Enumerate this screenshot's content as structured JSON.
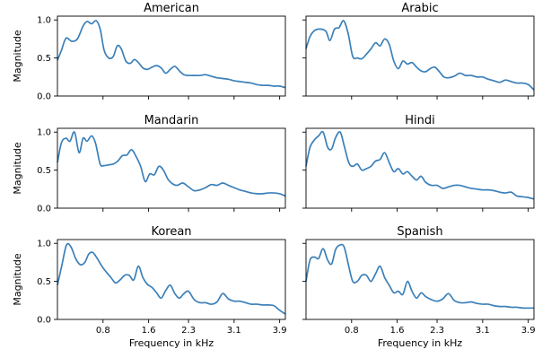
{
  "chart_data": [
    {
      "type": "line",
      "title": "American",
      "ylabel": "Magnitude",
      "xlabel": "",
      "xlim": [
        0,
        4.0
      ],
      "ylim": [
        0,
        1.05
      ],
      "xticks": [
        0.8,
        1.6,
        2.3,
        3.1,
        3.9
      ],
      "xticklabels": [
        "0.8",
        "1.6",
        "2.3",
        "3.1",
        "3.9"
      ],
      "yticks": [
        0,
        0.5,
        1.0
      ],
      "yticklabels": [
        "0.0",
        "0.5",
        "1.0"
      ],
      "x": [
        0.0,
        0.07,
        0.15,
        0.25,
        0.35,
        0.45,
        0.52,
        0.6,
        0.68,
        0.75,
        0.82,
        0.9,
        0.98,
        1.05,
        1.12,
        1.2,
        1.28,
        1.35,
        1.42,
        1.5,
        1.58,
        1.66,
        1.74,
        1.82,
        1.9,
        1.98,
        2.06,
        2.14,
        2.22,
        2.3,
        2.4,
        2.5,
        2.6,
        2.7,
        2.8,
        2.9,
        3.0,
        3.1,
        3.2,
        3.3,
        3.4,
        3.5,
        3.6,
        3.7,
        3.8,
        3.9,
        4.0
      ],
      "y": [
        0.47,
        0.6,
        0.76,
        0.72,
        0.75,
        0.92,
        0.98,
        0.95,
        0.99,
        0.88,
        0.6,
        0.5,
        0.52,
        0.66,
        0.62,
        0.46,
        0.43,
        0.48,
        0.44,
        0.37,
        0.35,
        0.38,
        0.4,
        0.37,
        0.3,
        0.35,
        0.39,
        0.33,
        0.28,
        0.27,
        0.27,
        0.27,
        0.28,
        0.26,
        0.24,
        0.23,
        0.22,
        0.2,
        0.19,
        0.18,
        0.17,
        0.15,
        0.14,
        0.14,
        0.13,
        0.13,
        0.11
      ]
    },
    {
      "type": "line",
      "title": "Arabic",
      "ylabel": "",
      "xlabel": "",
      "xlim": [
        0,
        4.0
      ],
      "ylim": [
        0,
        1.05
      ],
      "xticks": [
        0.8,
        1.6,
        2.3,
        3.1,
        3.9
      ],
      "xticklabels": [
        "0.8",
        "1.6",
        "2.3",
        "3.1",
        "3.9"
      ],
      "yticks": [
        0,
        0.5,
        1.0
      ],
      "yticklabels": [
        "0.0",
        "0.5",
        "1.0"
      ],
      "x": [
        0.0,
        0.07,
        0.15,
        0.25,
        0.35,
        0.42,
        0.5,
        0.58,
        0.66,
        0.74,
        0.82,
        0.9,
        0.98,
        1.06,
        1.14,
        1.22,
        1.3,
        1.38,
        1.46,
        1.54,
        1.62,
        1.7,
        1.78,
        1.86,
        1.94,
        2.02,
        2.1,
        2.18,
        2.26,
        2.34,
        2.42,
        2.5,
        2.6,
        2.7,
        2.8,
        2.9,
        3.0,
        3.1,
        3.2,
        3.3,
        3.4,
        3.5,
        3.6,
        3.7,
        3.8,
        3.9,
        4.0
      ],
      "y": [
        0.62,
        0.78,
        0.86,
        0.88,
        0.85,
        0.73,
        0.88,
        0.9,
        0.99,
        0.82,
        0.52,
        0.5,
        0.49,
        0.55,
        0.62,
        0.7,
        0.66,
        0.75,
        0.68,
        0.46,
        0.36,
        0.46,
        0.42,
        0.44,
        0.38,
        0.33,
        0.32,
        0.36,
        0.38,
        0.32,
        0.25,
        0.24,
        0.26,
        0.3,
        0.27,
        0.27,
        0.25,
        0.25,
        0.22,
        0.2,
        0.18,
        0.21,
        0.19,
        0.17,
        0.17,
        0.15,
        0.08
      ]
    },
    {
      "type": "line",
      "title": "Mandarin",
      "ylabel": "Magnitude",
      "xlabel": "",
      "xlim": [
        0,
        4.0
      ],
      "ylim": [
        0,
        1.05
      ],
      "xticks": [
        0.8,
        1.6,
        2.3,
        3.1,
        3.9
      ],
      "xticklabels": [
        "0.8",
        "1.6",
        "2.3",
        "3.1",
        "3.9"
      ],
      "yticks": [
        0,
        0.5,
        1.0
      ],
      "yticklabels": [
        "0.0",
        "0.5",
        "1.0"
      ],
      "x": [
        0.0,
        0.07,
        0.15,
        0.22,
        0.3,
        0.38,
        0.45,
        0.52,
        0.6,
        0.67,
        0.75,
        0.82,
        0.9,
        0.98,
        1.06,
        1.14,
        1.22,
        1.3,
        1.38,
        1.46,
        1.54,
        1.62,
        1.7,
        1.78,
        1.86,
        1.94,
        2.02,
        2.1,
        2.2,
        2.3,
        2.4,
        2.5,
        2.6,
        2.7,
        2.8,
        2.9,
        3.0,
        3.1,
        3.2,
        3.3,
        3.4,
        3.5,
        3.6,
        3.7,
        3.8,
        3.9,
        4.0
      ],
      "y": [
        0.6,
        0.86,
        0.92,
        0.88,
        1.0,
        0.73,
        0.92,
        0.88,
        0.95,
        0.85,
        0.58,
        0.56,
        0.57,
        0.58,
        0.62,
        0.69,
        0.7,
        0.77,
        0.68,
        0.55,
        0.35,
        0.45,
        0.44,
        0.55,
        0.5,
        0.38,
        0.32,
        0.3,
        0.33,
        0.28,
        0.23,
        0.24,
        0.27,
        0.31,
        0.3,
        0.33,
        0.3,
        0.27,
        0.24,
        0.22,
        0.2,
        0.19,
        0.19,
        0.2,
        0.2,
        0.19,
        0.16
      ]
    },
    {
      "type": "line",
      "title": "Hindi",
      "ylabel": "",
      "xlabel": "",
      "xlim": [
        0,
        4.0
      ],
      "ylim": [
        0,
        1.05
      ],
      "xticks": [
        0.8,
        1.6,
        2.3,
        3.1,
        3.9
      ],
      "xticklabels": [
        "0.8",
        "1.6",
        "2.3",
        "3.1",
        "3.9"
      ],
      "yticks": [
        0,
        0.5,
        1.0
      ],
      "yticklabels": [
        "0.0",
        "0.5",
        "1.0"
      ],
      "x": [
        0.0,
        0.07,
        0.15,
        0.22,
        0.3,
        0.38,
        0.45,
        0.52,
        0.6,
        0.67,
        0.75,
        0.82,
        0.9,
        0.98,
        1.06,
        1.14,
        1.22,
        1.3,
        1.38,
        1.46,
        1.54,
        1.62,
        1.7,
        1.78,
        1.86,
        1.94,
        2.02,
        2.1,
        2.2,
        2.3,
        2.4,
        2.5,
        2.6,
        2.7,
        2.8,
        2.9,
        3.0,
        3.1,
        3.2,
        3.3,
        3.4,
        3.5,
        3.6,
        3.7,
        3.8,
        3.9,
        4.0
      ],
      "y": [
        0.55,
        0.8,
        0.9,
        0.95,
        1.0,
        0.8,
        0.78,
        0.93,
        1.0,
        0.82,
        0.6,
        0.55,
        0.58,
        0.5,
        0.52,
        0.55,
        0.62,
        0.64,
        0.73,
        0.6,
        0.48,
        0.52,
        0.45,
        0.48,
        0.42,
        0.37,
        0.42,
        0.34,
        0.3,
        0.3,
        0.26,
        0.28,
        0.3,
        0.3,
        0.28,
        0.26,
        0.25,
        0.24,
        0.24,
        0.23,
        0.21,
        0.2,
        0.21,
        0.16,
        0.15,
        0.14,
        0.12
      ]
    },
    {
      "type": "line",
      "title": "Korean",
      "ylabel": "Magnitude",
      "xlabel": "Frequency in kHz",
      "xlim": [
        0,
        4.0
      ],
      "ylim": [
        0,
        1.05
      ],
      "xticks": [
        0.8,
        1.6,
        2.3,
        3.1,
        3.9
      ],
      "xticklabels": [
        "0.8",
        "1.6",
        "2.3",
        "3.1",
        "3.9"
      ],
      "yticks": [
        0,
        0.5,
        1.0
      ],
      "yticklabels": [
        "0.0",
        "0.5",
        "1.0"
      ],
      "x": [
        0.0,
        0.08,
        0.16,
        0.24,
        0.32,
        0.4,
        0.48,
        0.55,
        0.62,
        0.7,
        0.78,
        0.86,
        0.94,
        1.02,
        1.1,
        1.18,
        1.26,
        1.34,
        1.42,
        1.5,
        1.58,
        1.66,
        1.74,
        1.82,
        1.9,
        1.98,
        2.06,
        2.14,
        2.22,
        2.3,
        2.4,
        2.5,
        2.6,
        2.7,
        2.8,
        2.9,
        3.0,
        3.1,
        3.2,
        3.3,
        3.4,
        3.5,
        3.6,
        3.7,
        3.8,
        3.9,
        4.0
      ],
      "y": [
        0.45,
        0.72,
        0.98,
        0.95,
        0.8,
        0.72,
        0.75,
        0.86,
        0.88,
        0.8,
        0.7,
        0.62,
        0.55,
        0.48,
        0.52,
        0.58,
        0.58,
        0.52,
        0.7,
        0.55,
        0.46,
        0.42,
        0.35,
        0.28,
        0.38,
        0.45,
        0.34,
        0.28,
        0.34,
        0.37,
        0.26,
        0.22,
        0.22,
        0.2,
        0.23,
        0.34,
        0.27,
        0.24,
        0.24,
        0.22,
        0.2,
        0.2,
        0.19,
        0.19,
        0.18,
        0.12,
        0.07
      ]
    },
    {
      "type": "line",
      "title": "Spanish",
      "ylabel": "",
      "xlabel": "Frequency in kHz",
      "xlim": [
        0,
        4.0
      ],
      "ylim": [
        0,
        1.05
      ],
      "xticks": [
        0.8,
        1.6,
        2.3,
        3.1,
        3.9
      ],
      "xticklabels": [
        "0.8",
        "1.6",
        "2.3",
        "3.1",
        "3.9"
      ],
      "yticks": [
        0,
        0.5,
        1.0
      ],
      "yticklabels": [
        "0.0",
        "0.5",
        "1.0"
      ],
      "x": [
        0.0,
        0.07,
        0.15,
        0.22,
        0.3,
        0.38,
        0.45,
        0.52,
        0.6,
        0.67,
        0.75,
        0.82,
        0.9,
        0.98,
        1.06,
        1.14,
        1.22,
        1.3,
        1.38,
        1.46,
        1.54,
        1.62,
        1.7,
        1.78,
        1.86,
        1.94,
        2.02,
        2.1,
        2.2,
        2.3,
        2.4,
        2.5,
        2.6,
        2.7,
        2.8,
        2.9,
        3.0,
        3.1,
        3.2,
        3.3,
        3.4,
        3.5,
        3.6,
        3.7,
        3.8,
        3.9,
        4.0
      ],
      "y": [
        0.5,
        0.78,
        0.82,
        0.8,
        0.93,
        0.78,
        0.73,
        0.92,
        0.98,
        0.95,
        0.7,
        0.5,
        0.5,
        0.58,
        0.58,
        0.5,
        0.6,
        0.7,
        0.55,
        0.45,
        0.35,
        0.37,
        0.33,
        0.5,
        0.37,
        0.28,
        0.35,
        0.3,
        0.26,
        0.24,
        0.27,
        0.34,
        0.25,
        0.22,
        0.22,
        0.23,
        0.21,
        0.2,
        0.2,
        0.18,
        0.17,
        0.17,
        0.16,
        0.16,
        0.15,
        0.15,
        0.15
      ]
    }
  ]
}
